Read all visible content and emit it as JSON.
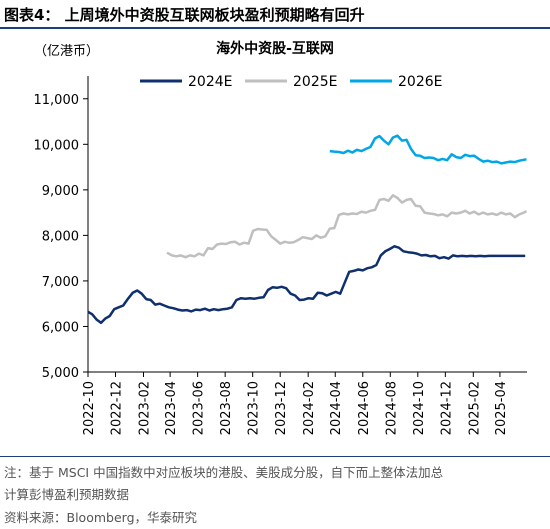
{
  "figure_title": "图表4：   上周境外中资股互联网板块盈利预期略有回升",
  "unit_label": "（亿港币）",
  "notes": [
    "注：基于 MSCI 中国指数中对应板块的港股、美股成分股，自下而上整体法加总",
    "计算彭博盈利预期数据",
    "资料来源：Bloomberg，华泰研究"
  ],
  "chart_data": {
    "type": "line",
    "title": "海外中资股-互联网",
    "ylim": [
      5000,
      11500
    ],
    "yticks": [
      5000,
      6000,
      7000,
      8000,
      9000,
      10000,
      11000
    ],
    "ytick_labels": [
      "5,000",
      "6,000",
      "7,000",
      "8,000",
      "9,000",
      "10,000",
      "11,000"
    ],
    "xlim": [
      "2022-10-01",
      "2025-05-31"
    ],
    "xticks": [
      "2022-10",
      "2022-12",
      "2023-02",
      "2023-04",
      "2023-06",
      "2023-08",
      "2023-10",
      "2023-12",
      "2024-02",
      "2024-04",
      "2024-06",
      "2024-08",
      "2024-10",
      "2024-12",
      "2025-02",
      "2025-04"
    ],
    "legend_position": "top",
    "series": [
      {
        "name": "2024E",
        "color": "#0f2f6e",
        "points": [
          [
            "2022-10-01",
            6320
          ],
          [
            "2022-10-10",
            6270
          ],
          [
            "2022-10-20",
            6150
          ],
          [
            "2022-10-30",
            6080
          ],
          [
            "2022-11-08",
            6170
          ],
          [
            "2022-11-18",
            6230
          ],
          [
            "2022-11-28",
            6380
          ],
          [
            "2022-12-08",
            6420
          ],
          [
            "2022-12-18",
            6460
          ],
          [
            "2022-12-28",
            6600
          ],
          [
            "2023-01-08",
            6740
          ],
          [
            "2023-01-18",
            6790
          ],
          [
            "2023-01-28",
            6720
          ],
          [
            "2023-02-07",
            6600
          ],
          [
            "2023-02-17",
            6580
          ],
          [
            "2023-02-27",
            6480
          ],
          [
            "2023-03-09",
            6500
          ],
          [
            "2023-03-19",
            6460
          ],
          [
            "2023-03-29",
            6420
          ],
          [
            "2023-04-08",
            6400
          ],
          [
            "2023-04-18",
            6370
          ],
          [
            "2023-04-28",
            6350
          ],
          [
            "2023-05-08",
            6360
          ],
          [
            "2023-05-18",
            6330
          ],
          [
            "2023-05-28",
            6370
          ],
          [
            "2023-06-07",
            6360
          ],
          [
            "2023-06-17",
            6390
          ],
          [
            "2023-06-27",
            6350
          ],
          [
            "2023-07-07",
            6380
          ],
          [
            "2023-07-17",
            6360
          ],
          [
            "2023-07-27",
            6380
          ],
          [
            "2023-08-06",
            6390
          ],
          [
            "2023-08-16",
            6420
          ],
          [
            "2023-08-26",
            6580
          ],
          [
            "2023-09-05",
            6620
          ],
          [
            "2023-09-15",
            6610
          ],
          [
            "2023-09-25",
            6620
          ],
          [
            "2023-10-05",
            6610
          ],
          [
            "2023-10-15",
            6630
          ],
          [
            "2023-10-25",
            6640
          ],
          [
            "2023-11-04",
            6800
          ],
          [
            "2023-11-14",
            6860
          ],
          [
            "2023-11-24",
            6850
          ],
          [
            "2023-12-04",
            6870
          ],
          [
            "2023-12-14",
            6840
          ],
          [
            "2023-12-24",
            6720
          ],
          [
            "2024-01-03",
            6680
          ],
          [
            "2024-01-13",
            6580
          ],
          [
            "2024-01-23",
            6590
          ],
          [
            "2024-02-02",
            6620
          ],
          [
            "2024-02-12",
            6610
          ],
          [
            "2024-02-22",
            6740
          ],
          [
            "2024-03-03",
            6730
          ],
          [
            "2024-03-13",
            6680
          ],
          [
            "2024-03-23",
            6720
          ],
          [
            "2024-04-02",
            6760
          ],
          [
            "2024-04-12",
            6720
          ],
          [
            "2024-04-22",
            6960
          ],
          [
            "2024-05-02",
            7200
          ],
          [
            "2024-05-12",
            7220
          ],
          [
            "2024-05-22",
            7250
          ],
          [
            "2024-06-01",
            7230
          ],
          [
            "2024-06-11",
            7280
          ],
          [
            "2024-06-21",
            7300
          ],
          [
            "2024-07-01",
            7350
          ],
          [
            "2024-07-11",
            7560
          ],
          [
            "2024-07-21",
            7650
          ],
          [
            "2024-07-31",
            7700
          ],
          [
            "2024-08-10",
            7760
          ],
          [
            "2024-08-20",
            7730
          ],
          [
            "2024-08-30",
            7650
          ],
          [
            "2024-09-09",
            7630
          ],
          [
            "2024-09-19",
            7620
          ],
          [
            "2024-09-29",
            7600
          ],
          [
            "2024-10-09",
            7560
          ],
          [
            "2024-10-19",
            7570
          ],
          [
            "2024-10-29",
            7540
          ],
          [
            "2024-11-08",
            7550
          ],
          [
            "2024-11-18",
            7500
          ],
          [
            "2024-11-28",
            7520
          ],
          [
            "2024-12-08",
            7490
          ],
          [
            "2024-12-18",
            7560
          ],
          [
            "2024-12-28",
            7540
          ],
          [
            "2025-01-07",
            7550
          ],
          [
            "2025-01-17",
            7540
          ],
          [
            "2025-01-27",
            7550
          ],
          [
            "2025-02-06",
            7540
          ],
          [
            "2025-02-16",
            7550
          ],
          [
            "2025-02-26",
            7540
          ],
          [
            "2025-03-08",
            7550
          ],
          [
            "2025-03-18",
            7550
          ],
          [
            "2025-03-28",
            7550
          ],
          [
            "2025-04-07",
            7550
          ],
          [
            "2025-04-17",
            7550
          ],
          [
            "2025-04-27",
            7550
          ],
          [
            "2025-05-07",
            7550
          ],
          [
            "2025-05-17",
            7550
          ],
          [
            "2025-05-27",
            7550
          ]
        ]
      },
      {
        "name": "2025E",
        "color": "#bfbfbf",
        "points": [
          [
            "2023-03-25",
            7620
          ],
          [
            "2023-04-05",
            7560
          ],
          [
            "2023-04-15",
            7540
          ],
          [
            "2023-04-25",
            7560
          ],
          [
            "2023-05-05",
            7520
          ],
          [
            "2023-05-15",
            7560
          ],
          [
            "2023-05-25",
            7540
          ],
          [
            "2023-06-04",
            7600
          ],
          [
            "2023-06-14",
            7560
          ],
          [
            "2023-06-24",
            7720
          ],
          [
            "2023-07-04",
            7700
          ],
          [
            "2023-07-14",
            7800
          ],
          [
            "2023-07-24",
            7820
          ],
          [
            "2023-08-03",
            7810
          ],
          [
            "2023-08-13",
            7850
          ],
          [
            "2023-08-23",
            7860
          ],
          [
            "2023-09-02",
            7800
          ],
          [
            "2023-09-12",
            7840
          ],
          [
            "2023-09-22",
            7820
          ],
          [
            "2023-10-02",
            8100
          ],
          [
            "2023-10-12",
            8140
          ],
          [
            "2023-10-22",
            8130
          ],
          [
            "2023-11-01",
            8120
          ],
          [
            "2023-11-11",
            7980
          ],
          [
            "2023-11-21",
            7900
          ],
          [
            "2023-12-01",
            7820
          ],
          [
            "2023-12-11",
            7860
          ],
          [
            "2023-12-21",
            7840
          ],
          [
            "2023-12-31",
            7850
          ],
          [
            "2024-01-10",
            7900
          ],
          [
            "2024-01-20",
            7960
          ],
          [
            "2024-01-30",
            7940
          ],
          [
            "2024-02-09",
            7920
          ],
          [
            "2024-02-19",
            8000
          ],
          [
            "2024-02-29",
            7950
          ],
          [
            "2024-03-10",
            7980
          ],
          [
            "2024-03-20",
            8150
          ],
          [
            "2024-03-30",
            8160
          ],
          [
            "2024-04-09",
            8450
          ],
          [
            "2024-04-19",
            8480
          ],
          [
            "2024-04-29",
            8460
          ],
          [
            "2024-05-09",
            8480
          ],
          [
            "2024-05-19",
            8470
          ],
          [
            "2024-05-29",
            8520
          ],
          [
            "2024-06-08",
            8500
          ],
          [
            "2024-06-18",
            8540
          ],
          [
            "2024-06-28",
            8560
          ],
          [
            "2024-07-08",
            8780
          ],
          [
            "2024-07-18",
            8800
          ],
          [
            "2024-07-28",
            8760
          ],
          [
            "2024-08-07",
            8880
          ],
          [
            "2024-08-17",
            8820
          ],
          [
            "2024-08-27",
            8720
          ],
          [
            "2024-09-06",
            8780
          ],
          [
            "2024-09-16",
            8800
          ],
          [
            "2024-09-26",
            8650
          ],
          [
            "2024-10-06",
            8640
          ],
          [
            "2024-10-16",
            8500
          ],
          [
            "2024-10-26",
            8480
          ],
          [
            "2024-11-05",
            8470
          ],
          [
            "2024-11-15",
            8440
          ],
          [
            "2024-11-25",
            8460
          ],
          [
            "2024-12-05",
            8420
          ],
          [
            "2024-12-15",
            8500
          ],
          [
            "2024-12-25",
            8480
          ],
          [
            "2025-01-04",
            8500
          ],
          [
            "2025-01-14",
            8540
          ],
          [
            "2025-01-24",
            8480
          ],
          [
            "2025-02-03",
            8520
          ],
          [
            "2025-02-13",
            8460
          ],
          [
            "2025-02-23",
            8500
          ],
          [
            "2025-03-05",
            8460
          ],
          [
            "2025-03-15",
            8480
          ],
          [
            "2025-03-25",
            8450
          ],
          [
            "2025-04-04",
            8500
          ],
          [
            "2025-04-14",
            8460
          ],
          [
            "2025-04-24",
            8480
          ],
          [
            "2025-05-04",
            8400
          ],
          [
            "2025-05-14",
            8460
          ],
          [
            "2025-05-24",
            8500
          ],
          [
            "2025-05-30",
            8530
          ]
        ]
      },
      {
        "name": "2026E",
        "color": "#00a6e6",
        "points": [
          [
            "2024-03-20",
            9850
          ],
          [
            "2024-03-30",
            9840
          ],
          [
            "2024-04-09",
            9830
          ],
          [
            "2024-04-19",
            9810
          ],
          [
            "2024-04-29",
            9860
          ],
          [
            "2024-05-09",
            9820
          ],
          [
            "2024-05-19",
            9880
          ],
          [
            "2024-05-29",
            9850
          ],
          [
            "2024-06-08",
            9900
          ],
          [
            "2024-06-18",
            9940
          ],
          [
            "2024-06-28",
            10130
          ],
          [
            "2024-07-08",
            10180
          ],
          [
            "2024-07-18",
            10080
          ],
          [
            "2024-07-28",
            10000
          ],
          [
            "2024-08-07",
            10150
          ],
          [
            "2024-08-17",
            10190
          ],
          [
            "2024-08-27",
            10080
          ],
          [
            "2024-09-06",
            10100
          ],
          [
            "2024-09-16",
            9900
          ],
          [
            "2024-09-26",
            9760
          ],
          [
            "2024-10-06",
            9750
          ],
          [
            "2024-10-16",
            9700
          ],
          [
            "2024-10-26",
            9710
          ],
          [
            "2024-11-05",
            9700
          ],
          [
            "2024-11-15",
            9650
          ],
          [
            "2024-11-25",
            9680
          ],
          [
            "2024-12-05",
            9650
          ],
          [
            "2024-12-15",
            9780
          ],
          [
            "2024-12-25",
            9720
          ],
          [
            "2025-01-04",
            9700
          ],
          [
            "2025-01-14",
            9770
          ],
          [
            "2025-01-24",
            9740
          ],
          [
            "2025-02-03",
            9750
          ],
          [
            "2025-02-13",
            9680
          ],
          [
            "2025-02-23",
            9620
          ],
          [
            "2025-03-05",
            9640
          ],
          [
            "2025-03-15",
            9610
          ],
          [
            "2025-03-25",
            9620
          ],
          [
            "2025-04-04",
            9580
          ],
          [
            "2025-04-14",
            9600
          ],
          [
            "2025-04-24",
            9620
          ],
          [
            "2025-05-04",
            9610
          ],
          [
            "2025-05-14",
            9640
          ],
          [
            "2025-05-24",
            9660
          ],
          [
            "2025-05-30",
            9670
          ]
        ]
      }
    ]
  }
}
